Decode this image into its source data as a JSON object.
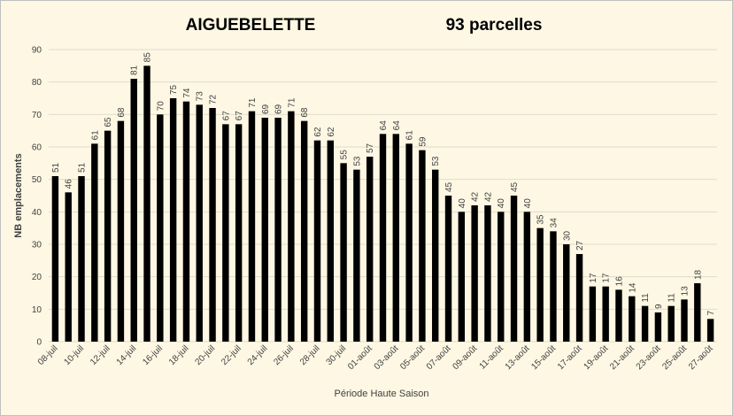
{
  "chart_data": {
    "type": "bar",
    "title": "AIGUEBELETTE",
    "subtitle": "93 parcelles",
    "x_label": "Période Haute Saison",
    "y_label": "NB emplacements",
    "categories": [
      "08-juil",
      null,
      "10-juil",
      null,
      "12-juil",
      null,
      "14-juil",
      null,
      "16-juil",
      null,
      "18-juil",
      null,
      "20-juil",
      null,
      "22-juil",
      null,
      "24-juil",
      null,
      "26-juil",
      null,
      "28-juil",
      null,
      "30-juil",
      null,
      "01-août",
      null,
      "03-août",
      null,
      "05-août",
      null,
      "07-août",
      null,
      "09-août",
      null,
      "11-août",
      null,
      "13-août",
      null,
      "15-août",
      null,
      "17-août",
      null,
      "19-août",
      null,
      "21-août",
      null,
      "23-août",
      null,
      "25-août",
      null,
      "27-août"
    ],
    "values": [
      51,
      46,
      51,
      61,
      65,
      68,
      81,
      85,
      70,
      75,
      74,
      73,
      72,
      67,
      67,
      71,
      69,
      69,
      71,
      68,
      62,
      62,
      55,
      53,
      57,
      64,
      64,
      61,
      59,
      53,
      45,
      40,
      42,
      42,
      40,
      45,
      40,
      35,
      34,
      30,
      27,
      17,
      17,
      16,
      14,
      11,
      9,
      11,
      13,
      18,
      7
    ],
    "color": "#000000",
    "ylim": [
      0,
      90
    ],
    "yticks": [
      0,
      10,
      20,
      30,
      40,
      50,
      60,
      70,
      80,
      90
    ],
    "grid": true
  }
}
